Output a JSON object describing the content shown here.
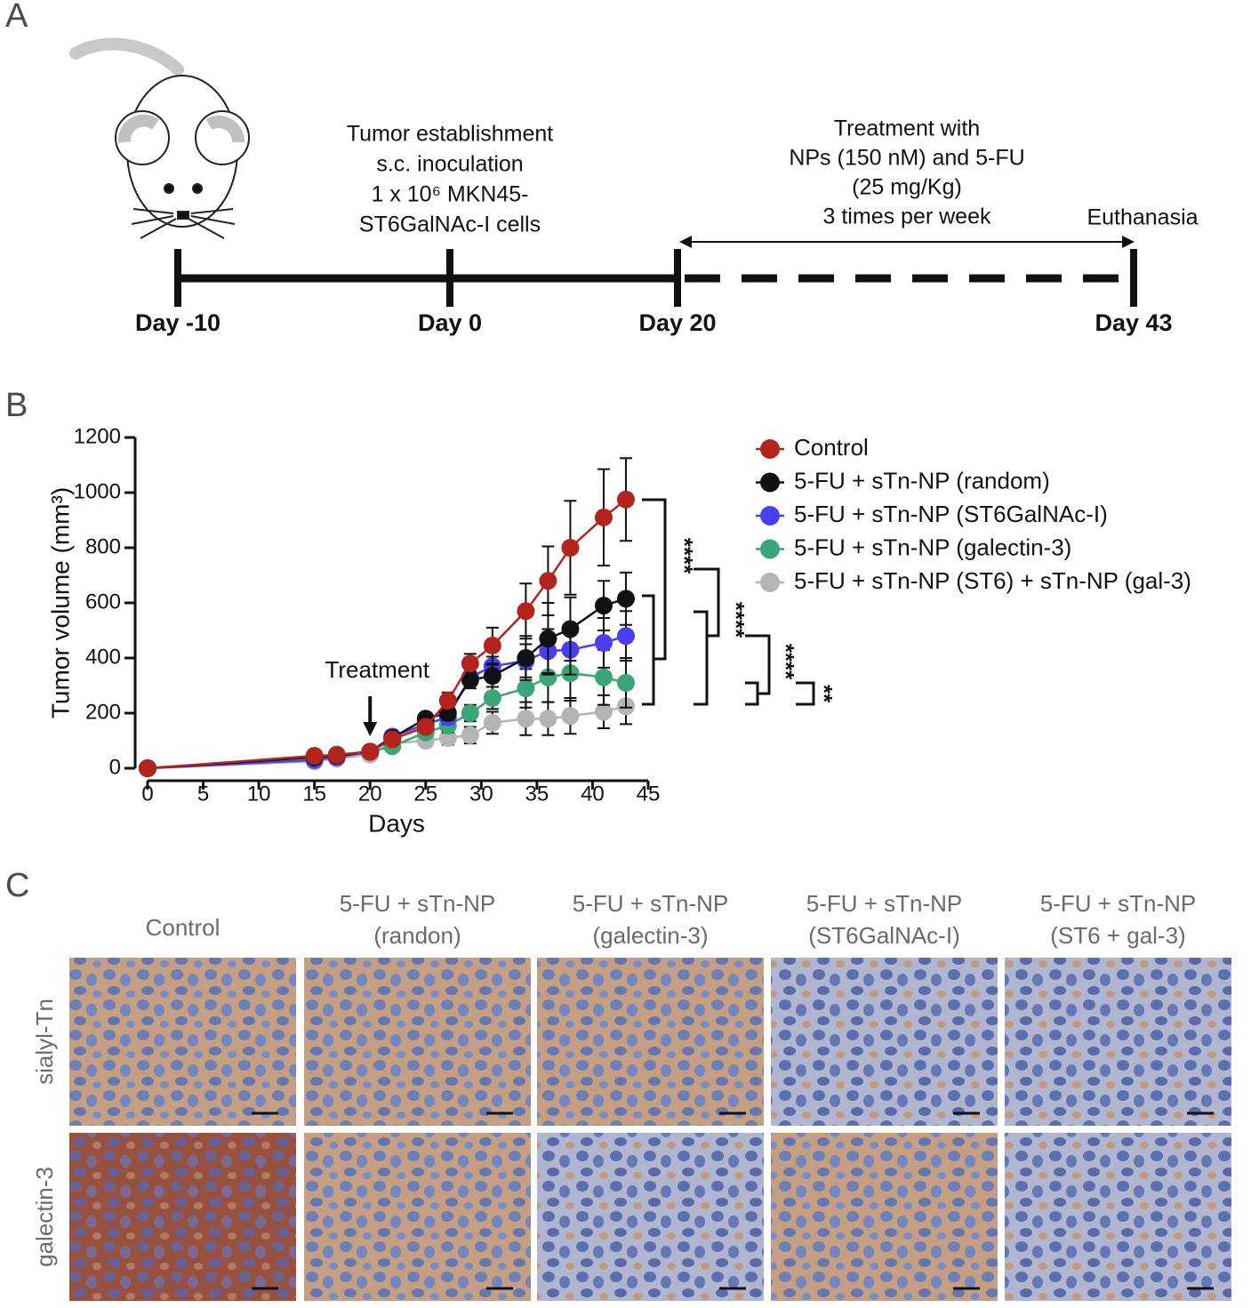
{
  "panel_a": {
    "label": "A",
    "establishment": [
      "Tumor establishment",
      "s.c. inoculation",
      "1 x 10⁶ MKN45-",
      "ST6GalNAc-I cells"
    ],
    "treatment": [
      "Treatment with",
      "NPs (150 nM) and 5-FU",
      "(25 mg/Kg)",
      "3 times per week"
    ],
    "end": "Euthanasia",
    "days": [
      "Day -10",
      "Day 0",
      "Day 20",
      "Day 43"
    ]
  },
  "panel_b": {
    "label": "B"
  },
  "chart_data": {
    "type": "line",
    "y_label": "Tumor volume (mm³)",
    "x_label": "Days",
    "x": [
      0,
      15,
      17,
      20,
      22,
      25,
      27,
      29,
      31,
      34,
      36,
      38,
      41,
      43
    ],
    "xlim": [
      0,
      45
    ],
    "xticks": [
      0,
      5,
      10,
      15,
      20,
      25,
      30,
      35,
      40,
      45
    ],
    "ylim": [
      0,
      1200
    ],
    "yticks": [
      0,
      200,
      400,
      600,
      800,
      1000,
      1200
    ],
    "annotation": {
      "text": "Treatment",
      "x": 20
    },
    "significance": [
      "****",
      "****",
      "****",
      "**"
    ],
    "series": [
      {
        "name": "Control",
        "color": "#b3241c",
        "values": [
          0,
          45,
          48,
          60,
          105,
          150,
          245,
          380,
          445,
          570,
          680,
          800,
          910,
          975
        ],
        "errors": [
          0,
          8,
          8,
          8,
          10,
          15,
          30,
          35,
          65,
          100,
          125,
          170,
          175,
          150
        ]
      },
      {
        "name": "5-FU + sTn-NP (random)",
        "color": "#111111",
        "values": [
          0,
          40,
          45,
          60,
          110,
          180,
          200,
          320,
          335,
          400,
          470,
          505,
          590,
          615
        ],
        "errors": [
          0,
          5,
          5,
          8,
          10,
          20,
          25,
          30,
          40,
          80,
          130,
          115,
          90,
          95
        ]
      },
      {
        "name": "5-FU + sTn-NP (ST6GalNAc-I)",
        "color": "#4a3ef2",
        "values": [
          0,
          30,
          40,
          60,
          115,
          160,
          185,
          330,
          370,
          390,
          425,
          430,
          455,
          480
        ],
        "errors": [
          0,
          5,
          5,
          8,
          10,
          20,
          25,
          30,
          35,
          60,
          80,
          90,
          90,
          90
        ]
      },
      {
        "name": "5-FU + sTn-NP (galectin-3)",
        "color": "#3aa579",
        "values": [
          0,
          40,
          50,
          60,
          80,
          130,
          155,
          200,
          255,
          290,
          330,
          345,
          330,
          310
        ],
        "errors": [
          0,
          5,
          5,
          8,
          10,
          20,
          25,
          30,
          40,
          70,
          90,
          100,
          100,
          90
        ]
      },
      {
        "name": "5-FU + sTn-NP (ST6) + sTn-NP (gal-3)",
        "color": "#b4b4b4",
        "values": [
          0,
          25,
          35,
          50,
          90,
          100,
          110,
          120,
          165,
          180,
          180,
          190,
          205,
          225
        ],
        "errors": [
          0,
          5,
          5,
          5,
          10,
          20,
          25,
          30,
          40,
          60,
          60,
          65,
          60,
          65
        ]
      }
    ]
  },
  "panel_c": {
    "label": "C",
    "columns": [
      [
        "Control"
      ],
      [
        "5-FU + sTn-NP",
        "(randon)"
      ],
      [
        "5-FU + sTn-NP",
        "(galectin-3)"
      ],
      [
        "5-FU + sTn-NP",
        "(ST6GalNAc-I)"
      ],
      [
        "5-FU + sTn-NP",
        "(ST6 + gal-3)"
      ]
    ],
    "rows": [
      "sialyl-Tn",
      "galectin-3"
    ]
  }
}
